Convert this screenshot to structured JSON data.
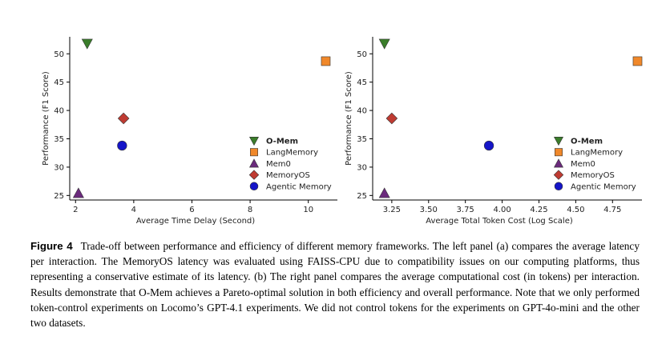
{
  "chart_data": [
    {
      "type": "scatter",
      "panel": "a",
      "xlabel": "Average Time Delay (Second)",
      "ylabel": "Performance (F1 Score)",
      "xlim": [
        1.8,
        11.0
      ],
      "ylim": [
        24.2,
        53.0
      ],
      "xticks": [
        2,
        4,
        6,
        8,
        10
      ],
      "xtick_labels": [
        "2",
        "4",
        "6",
        "8",
        "10"
      ],
      "yticks": [
        25,
        30,
        35,
        40,
        45,
        50
      ],
      "ytick_labels": [
        "25",
        "30",
        "35",
        "40",
        "45",
        "50"
      ],
      "legend_position": "lower-right",
      "series": [
        {
          "name": "O-Mem",
          "marker": "triangle-down",
          "color": "#3a7d2a",
          "bold": true,
          "x": 2.4,
          "y": 51.8
        },
        {
          "name": "LangMemory",
          "marker": "square",
          "color": "#f0882a",
          "bold": false,
          "x": 10.6,
          "y": 48.7
        },
        {
          "name": "Mem0",
          "marker": "triangle-up",
          "color": "#6b2a7d",
          "bold": false,
          "x": 2.1,
          "y": 25.4
        },
        {
          "name": "MemoryOS",
          "marker": "diamond",
          "color": "#bf3b32",
          "bold": false,
          "x": 3.65,
          "y": 38.6
        },
        {
          "name": "Agentic Memory",
          "marker": "circle",
          "color": "#1515c8",
          "bold": false,
          "x": 3.6,
          "y": 33.8
        }
      ]
    },
    {
      "type": "scatter",
      "panel": "b",
      "xlabel": "Average Total Token Cost (Log Scale)",
      "ylabel": "Performance (F1 Score)",
      "xlim": [
        3.12,
        4.95
      ],
      "ylim": [
        24.2,
        53.0
      ],
      "xticks": [
        3.25,
        3.5,
        3.75,
        4.0,
        4.25,
        4.5,
        4.75
      ],
      "xtick_labels": [
        "3.25",
        "3.50",
        "3.75",
        "4.00",
        "4.25",
        "4.50",
        "4.75"
      ],
      "yticks": [
        25,
        30,
        35,
        40,
        45,
        50
      ],
      "ytick_labels": [
        "25",
        "30",
        "35",
        "40",
        "45",
        "50"
      ],
      "legend_position": "lower-right",
      "series": [
        {
          "name": "O-Mem",
          "marker": "triangle-down",
          "color": "#3a7d2a",
          "bold": true,
          "x": 3.2,
          "y": 51.8
        },
        {
          "name": "LangMemory",
          "marker": "square",
          "color": "#f0882a",
          "bold": false,
          "x": 4.92,
          "y": 48.7
        },
        {
          "name": "Mem0",
          "marker": "triangle-up",
          "color": "#6b2a7d",
          "bold": false,
          "x": 3.2,
          "y": 25.4
        },
        {
          "name": "MemoryOS",
          "marker": "diamond",
          "color": "#bf3b32",
          "bold": false,
          "x": 3.25,
          "y": 38.6
        },
        {
          "name": "Agentic Memory",
          "marker": "circle",
          "color": "#1515c8",
          "bold": false,
          "x": 3.91,
          "y": 33.8
        }
      ]
    }
  ],
  "caption": {
    "label": "Figure 4",
    "text": "Trade-off between performance and efficiency of different memory frameworks. The left panel (a) compares the average latency per interaction. The MemoryOS latency was evaluated using FAISS-CPU due to compatibility issues on our computing platforms, thus representing a conservative estimate of its latency. (b) The right panel compares the average computational cost (in tokens) per interaction. Results demonstrate that O-Mem achieves a Pareto-optimal solution in both efficiency and overall performance. Note that we only performed token-control experiments on Locomo’s GPT-4.1 experiments. We did not control tokens for the experiments on GPT-4o-mini and the other two datasets."
  }
}
